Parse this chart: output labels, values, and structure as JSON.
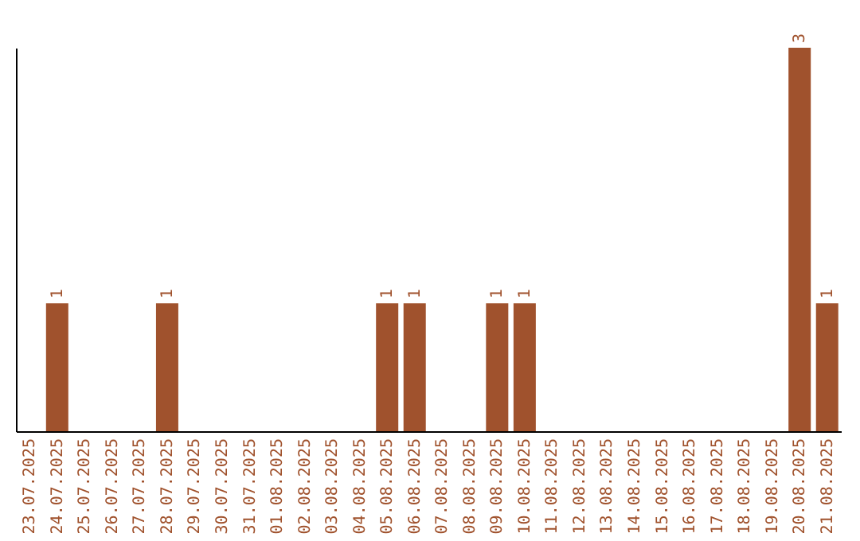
{
  "chart_data": {
    "type": "bar",
    "categories": [
      "23.07.2025",
      "24.07.2025",
      "25.07.2025",
      "26.07.2025",
      "27.07.2025",
      "28.07.2025",
      "29.07.2025",
      "30.07.2025",
      "31.07.2025",
      "01.08.2025",
      "02.08.2025",
      "03.08.2025",
      "04.08.2025",
      "05.08.2025",
      "06.08.2025",
      "07.08.2025",
      "08.08.2025",
      "09.08.2025",
      "10.08.2025",
      "11.08.2025",
      "12.08.2025",
      "13.08.2025",
      "14.08.2025",
      "15.08.2025",
      "16.08.2025",
      "17.08.2025",
      "18.08.2025",
      "19.08.2025",
      "20.08.2025",
      "21.08.2025"
    ],
    "values": [
      0,
      1,
      0,
      0,
      0,
      1,
      0,
      0,
      0,
      0,
      0,
      0,
      0,
      1,
      1,
      0,
      0,
      1,
      1,
      0,
      0,
      0,
      0,
      0,
      0,
      0,
      0,
      0,
      3,
      1
    ],
    "value_labels": [
      null,
      "1",
      null,
      null,
      null,
      "1",
      null,
      null,
      null,
      null,
      null,
      null,
      null,
      "1",
      "1",
      null,
      null,
      "1",
      "1",
      null,
      null,
      null,
      null,
      null,
      null,
      null,
      null,
      null,
      "3",
      "1"
    ],
    "color": "#a0522d",
    "ylim": [
      0,
      3
    ],
    "tick_labels": "x",
    "grid": false
  }
}
